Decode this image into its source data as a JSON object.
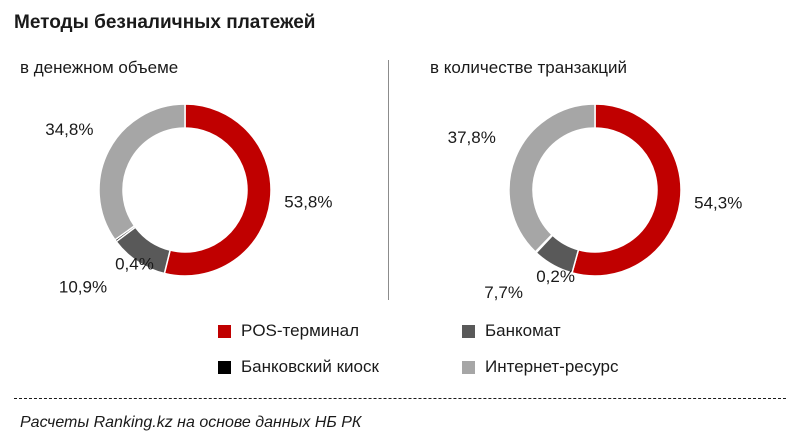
{
  "title": "Методы безналичных платежей",
  "legend": [
    {
      "label": "POS-терминал",
      "color": "#c00000"
    },
    {
      "label": "Банкомат",
      "color": "#595959"
    },
    {
      "label": "Банковский киоск",
      "color": "#000000"
    },
    {
      "label": "Интернет-ресурс",
      "color": "#a6a6a6"
    }
  ],
  "source": "Расчеты Ranking.kz на основе данных НБ РК",
  "chart_data": [
    {
      "type": "pie",
      "subtitle": "в денежном объеме",
      "categories": [
        "POS-терминал",
        "Банкомат",
        "Банковский киоск",
        "Интернет-ресурс"
      ],
      "values": [
        53.8,
        10.9,
        0.4,
        34.8
      ],
      "labels": [
        "53,8%",
        "10,9%",
        "0,4%",
        "34,8%"
      ]
    },
    {
      "type": "pie",
      "subtitle": "в количестве транзакций",
      "categories": [
        "POS-терминал",
        "Банкомат",
        "Банковский киоск",
        "Интернет-ресурс"
      ],
      "values": [
        54.3,
        7.7,
        0.2,
        37.8
      ],
      "labels": [
        "54,3%",
        "7,7%",
        "0,2%",
        "37,8%"
      ]
    }
  ]
}
